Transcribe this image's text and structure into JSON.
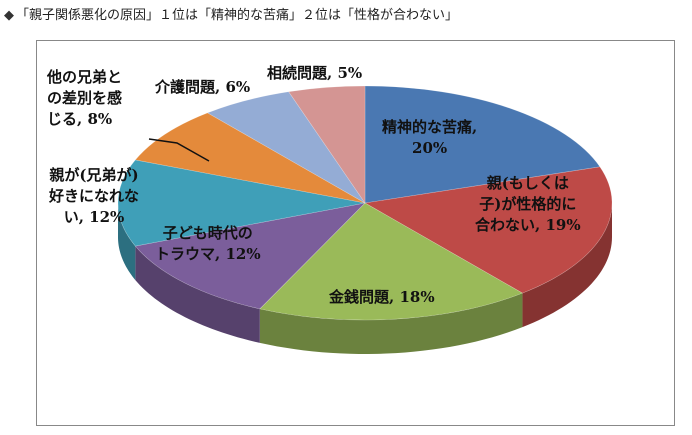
{
  "title": "「親子関係悪化の原因」１位は「精神的な苦痛」２位は「性格が合わない」",
  "title_icon": "diamond-bullet-icon",
  "chart_data": {
    "type": "pie",
    "style": "3d",
    "title": "「親子関係悪化の原因」１位は「精神的な苦痛」２位は「性格が合わない」",
    "categories": [
      "精神的な苦痛",
      "親(もしくは子)が性格的に合わない",
      "金銭問題",
      "子ども時代のトラウマ",
      "親が(兄弟が)好きになれない",
      "他の兄弟との差別を感じる",
      "介護問題",
      "相続問題"
    ],
    "values": [
      20,
      19,
      18,
      12,
      12,
      8,
      6,
      5
    ],
    "unit": "%",
    "colors": [
      "#4a78b2",
      "#be4a47",
      "#9aba59",
      "#7b5e9b",
      "#3f9fb8",
      "#e48a3b",
      "#94acd5",
      "#d49593"
    ],
    "labels": [
      "精神的な苦痛,\n20%",
      "親(もしくは\n子)が性格的に\n合わない, 19%",
      "金銭問題, 18%",
      "子ども時代の\nトラウマ, 12%",
      "親が(兄弟が)\n好きになれな\nい, 12%",
      "他の兄弟と\nの差別を感\nじる, 8%",
      "介護問題, 6%",
      "相続問題, 5%"
    ]
  }
}
